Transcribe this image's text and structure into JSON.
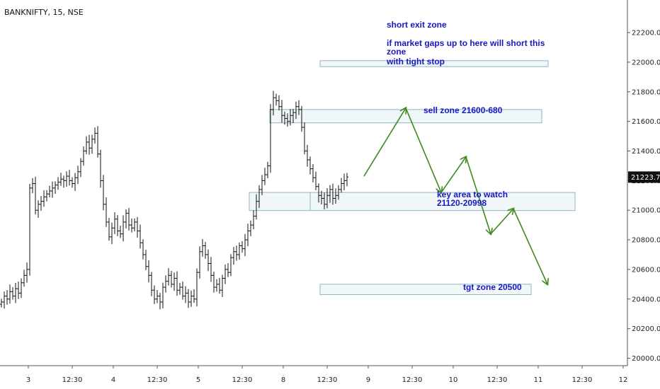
{
  "chart_data": {
    "type": "bar",
    "title": "BANKNIFTY, 15, NSE",
    "xlabel": "",
    "ylabel": "",
    "ylim": [
      19950,
      22420
    ],
    "xlim": [
      0,
      880
    ],
    "y_ticks": [
      20000,
      20200,
      20400,
      20600,
      20800,
      21000,
      21200,
      21400,
      21600,
      21800,
      22000,
      22200
    ],
    "y_tick_labels": [
      "20000.00",
      "20200.00",
      "20400.00",
      "20600.00",
      "20800.00",
      "21000.00",
      "21200.00",
      "21400.00",
      "21600.00",
      "21800.00",
      "22000.00",
      "22200.00"
    ],
    "x_ticks": [
      {
        "x": 40,
        "label": "3"
      },
      {
        "x": 102,
        "label": "12:30"
      },
      {
        "x": 160,
        "label": "4"
      },
      {
        "x": 222,
        "label": "12:30"
      },
      {
        "x": 280,
        "label": "5"
      },
      {
        "x": 342,
        "label": "12:30"
      },
      {
        "x": 400,
        "label": "8"
      },
      {
        "x": 462,
        "label": "12:30"
      },
      {
        "x": 520,
        "label": "9"
      },
      {
        "x": 582,
        "label": "12:30"
      },
      {
        "x": 640,
        "label": "10"
      },
      {
        "x": 702,
        "label": "12:30"
      },
      {
        "x": 760,
        "label": "11"
      },
      {
        "x": 822,
        "label": "12:30"
      },
      {
        "x": 880,
        "label": "12"
      }
    ],
    "last_price": "21223.75",
    "last_price_value": 21223.75,
    "price_bars": {
      "first_x": 2,
      "step": 4,
      "closes": [
        20380,
        20420,
        20400,
        20450,
        20420,
        20470,
        20440,
        20510,
        20560,
        20600,
        21150,
        21180,
        21000,
        21040,
        21060,
        21090,
        21110,
        21130,
        21150,
        21170,
        21190,
        21210,
        21200,
        21230,
        21200,
        21180,
        21220,
        21260,
        21330,
        21400,
        21460,
        21420,
        21480,
        21520,
        21380,
        21200,
        21040,
        20920,
        20820,
        20880,
        20940,
        20860,
        20840,
        20920,
        20980,
        20900,
        20880,
        20920,
        20860,
        20780,
        20700,
        20620,
        20560,
        20460,
        20400,
        20420,
        20380,
        20480,
        20520,
        20560,
        20500,
        20540,
        20460,
        20480,
        20420,
        20440,
        20380,
        20420,
        20400,
        20580,
        20720,
        20760,
        20700,
        20640,
        20560,
        20480,
        20500,
        20460,
        20540,
        20600,
        20580,
        20680,
        20720,
        20700,
        20760,
        20740,
        20800,
        20860,
        20900,
        20960,
        21060,
        21140,
        21200,
        21240,
        21300,
        21680,
        21760,
        21740,
        21700,
        21640,
        21620,
        21600,
        21640,
        21660,
        21700,
        21680,
        21560,
        21400,
        21340,
        21280,
        21220,
        21160,
        21100,
        21080,
        21040,
        21100,
        21140,
        21080,
        21100,
        21140,
        21180,
        21200,
        21224
      ]
    },
    "zones": [
      {
        "label": "short exit zone",
        "from": 21970,
        "to": 22010,
        "x_start": 452,
        "x_end": 774
      },
      {
        "label": "sell zone 21600-680",
        "from": 21590,
        "to": 21680,
        "x_start": 381,
        "x_end": 765
      },
      {
        "label": "key area to watch 21120-20998",
        "from": 20998,
        "to": 21120,
        "x_start": 352,
        "x_end": 812
      },
      {
        "label": "tgt zone 20500",
        "from": 20430,
        "to": 20500,
        "x_start": 452,
        "x_end": 750
      }
    ],
    "projection_path": [
      {
        "x": 514,
        "y": 21230
      },
      {
        "x": 573,
        "y": 21690
      },
      {
        "x": 623,
        "y": 21120
      },
      {
        "x": 658,
        "y": 21360
      },
      {
        "x": 693,
        "y": 20840
      },
      {
        "x": 725,
        "y": 21010
      },
      {
        "x": 773,
        "y": 20500
      }
    ],
    "annotations": {
      "short_exit_title": "short exit zone",
      "gap_line_1": "if market gaps up to here  will short this",
      "gap_line_2": "zone",
      "gap_line_3": "with tight stop",
      "sell_zone": "sell zone 21600-680",
      "key_area_line_1": "key area to watch",
      "key_area_line_2": "21120-20998",
      "tgt_zone": "tgt zone 20500"
    },
    "colors": {
      "bars": "#111111",
      "zone_fill": "#f1f7f9",
      "zone_border": "#8fb4c2",
      "projection": "#3f8a1e",
      "annotation_text": "#1717c2",
      "price_label_bg": "#111111",
      "price_label_text": "#ffffff"
    },
    "grid": false,
    "legend": "none"
  }
}
